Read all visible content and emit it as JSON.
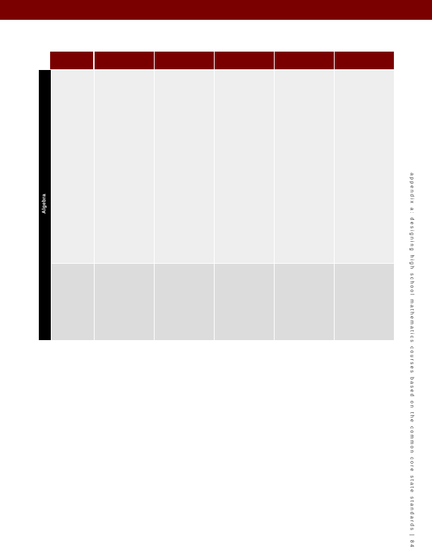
{
  "header": {
    "band_color": "#7a0000"
  },
  "table": {
    "columns": [
      "",
      "",
      "",
      "",
      "",
      ""
    ],
    "domain_label": "Algebra",
    "rows": [
      {
        "cells": [
          "",
          "",
          "",
          "",
          "",
          ""
        ]
      },
      {
        "cells": [
          "",
          "",
          "",
          "",
          "",
          ""
        ]
      }
    ],
    "colors": {
      "header": "#7a0000",
      "row_light": "#eeeeee",
      "row_dark": "#dcdcdc",
      "band": "#000000"
    }
  },
  "footer": {
    "running_title": "appendix a: designing high school mathematics courses based on the common core state standards",
    "page_number": "84"
  }
}
